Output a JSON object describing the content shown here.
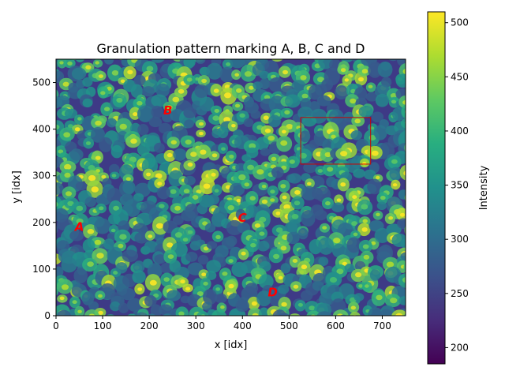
{
  "chart_data": {
    "type": "heatmap",
    "title": "Granulation pattern marking A, B, C and D",
    "xlabel": "x [idx]",
    "ylabel": "y [idx]",
    "xlim": [
      0,
      750
    ],
    "ylim": [
      0,
      550
    ],
    "xticks": [
      "0",
      "100",
      "200",
      "300",
      "400",
      "500",
      "600",
      "700"
    ],
    "yticks": [
      "0",
      "100",
      "200",
      "300",
      "400",
      "500"
    ],
    "colormap": "viridis",
    "colorbar": {
      "label": "Intensity",
      "range": [
        185,
        510
      ],
      "ticks": [
        "200",
        "250",
        "300",
        "350",
        "400",
        "450",
        "500"
      ]
    },
    "annotations": [
      {
        "text": "A",
        "x": 50,
        "y": 190,
        "color": "#ff0000"
      },
      {
        "text": "B",
        "x": 240,
        "y": 440,
        "color": "#ff0000"
      },
      {
        "text": "C",
        "x": 400,
        "y": 210,
        "color": "#ff0000"
      },
      {
        "text": "D",
        "x": 465,
        "y": 50,
        "color": "#ff0000"
      }
    ],
    "rectangle": {
      "x0": 525,
      "x1": 675,
      "y0": 325,
      "y1": 425,
      "color": "#cc0000"
    },
    "grid": false
  }
}
